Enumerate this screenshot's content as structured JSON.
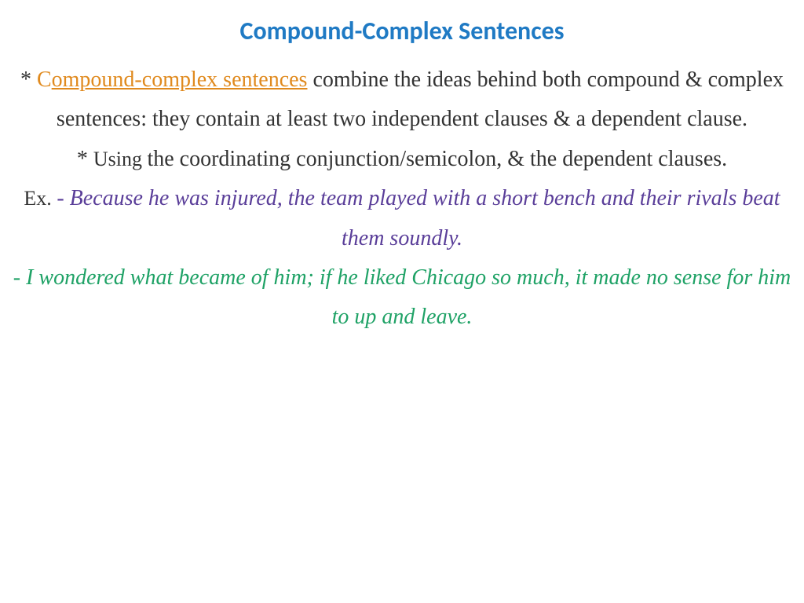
{
  "colors": {
    "title": "#1f7ac4",
    "body": "#333333",
    "term": "#e08a1e",
    "example1": "#5a3e99",
    "example2": "#1fa266",
    "dash": "#5a3e99"
  },
  "title": "Compound-Complex Sentences",
  "para1": {
    "star": "* ",
    "term_first": "C",
    "term_rest": "ompound-complex sentences",
    "text_after": " combine the ideas behind both compound & complex sentences: they contain at least two independent clauses & a dependent clause."
  },
  "para2": {
    "star": "* ",
    "using": "Using ",
    "rest": "the coordinating conjunction/semicolon, & the dependent clauses."
  },
  "para3": {
    "ex_label": "Ex. ",
    "dash": "- ",
    "example": "Because he was injured, the team played with a short bench and their rivals beat them soundly."
  },
  "para4": {
    "dash": "- ",
    "example": "I wondered what became of him; if he liked Chicago so much, it made no sense for him to up and leave."
  }
}
